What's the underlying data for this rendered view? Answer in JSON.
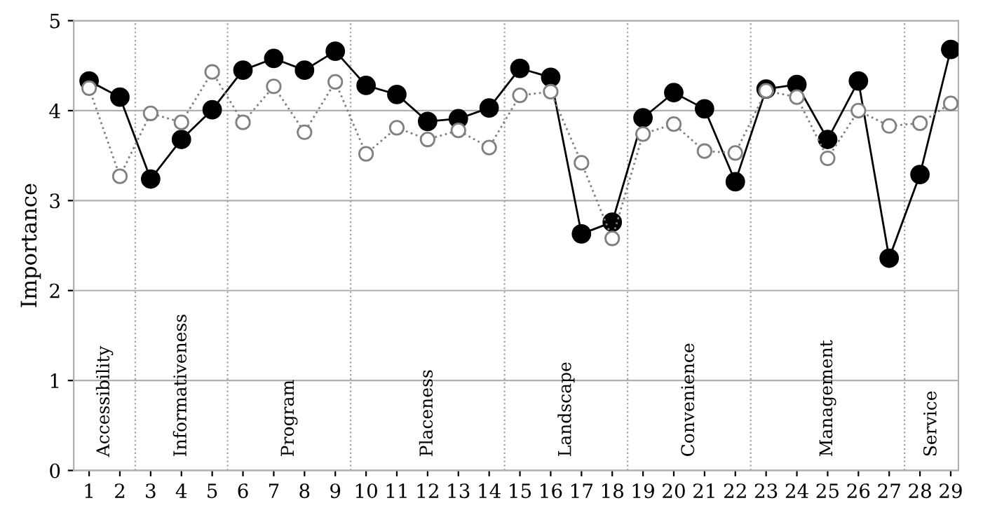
{
  "chart_data": {
    "type": "line",
    "ylabel": "Importance",
    "x": [
      1,
      2,
      3,
      4,
      5,
      6,
      7,
      8,
      9,
      10,
      11,
      12,
      13,
      14,
      15,
      16,
      17,
      18,
      19,
      20,
      21,
      22,
      23,
      24,
      25,
      26,
      27,
      28,
      29
    ],
    "xlim": [
      0.5,
      29.25
    ],
    "xticks": [
      1,
      2,
      3,
      4,
      5,
      6,
      7,
      8,
      9,
      10,
      11,
      12,
      13,
      14,
      15,
      16,
      17,
      18,
      19,
      20,
      21,
      22,
      23,
      24,
      25,
      26,
      27,
      28,
      29
    ],
    "ylim": [
      0,
      5
    ],
    "yticks": [
      0,
      1,
      2,
      3,
      4,
      5
    ],
    "grid": "y",
    "marker": "circle",
    "series": [
      {
        "color": "#000000",
        "line_style": "solid",
        "values": [
          4.33,
          4.15,
          3.24,
          3.68,
          4.01,
          4.45,
          4.58,
          4.45,
          4.66,
          4.28,
          4.18,
          3.88,
          3.91,
          4.03,
          4.47,
          4.37,
          2.63,
          2.76,
          3.92,
          4.2,
          4.02,
          3.21,
          4.24,
          4.29,
          3.68,
          4.33,
          2.36,
          3.29,
          4.68
        ]
      },
      {
        "color": "#808080",
        "line_style": "dotted",
        "values": [
          4.25,
          3.27,
          3.97,
          3.87,
          4.43,
          3.87,
          4.27,
          3.76,
          4.32,
          3.52,
          3.81,
          3.68,
          3.78,
          3.59,
          4.17,
          4.21,
          3.42,
          2.58,
          3.74,
          3.85,
          3.55,
          3.53,
          4.22,
          4.15,
          3.47,
          4.0,
          3.83,
          3.86,
          4.08
        ]
      }
    ],
    "ref_lines": [
      {
        "axis": "x",
        "value": 2.5,
        "color": "#a0a0a0",
        "line_style": "dotted"
      },
      {
        "axis": "x",
        "value": 5.5,
        "color": "#a0a0a0",
        "line_style": "dotted"
      },
      {
        "axis": "x",
        "value": 9.5,
        "color": "#a0a0a0",
        "line_style": "dotted"
      },
      {
        "axis": "x",
        "value": 14.5,
        "color": "#a0a0a0",
        "line_style": "dotted"
      },
      {
        "axis": "x",
        "value": 18.5,
        "color": "#a0a0a0",
        "line_style": "dotted"
      },
      {
        "axis": "x",
        "value": 22.5,
        "color": "#a0a0a0",
        "line_style": "dotted"
      },
      {
        "axis": "x",
        "value": 27.5,
        "color": "#a0a0a0",
        "line_style": "dotted"
      }
    ],
    "annotations": [
      "Accessibility",
      "Informativeness",
      "Program",
      "Placeness",
      "Landscape",
      "Convenience",
      "Management",
      "Service"
    ]
  }
}
